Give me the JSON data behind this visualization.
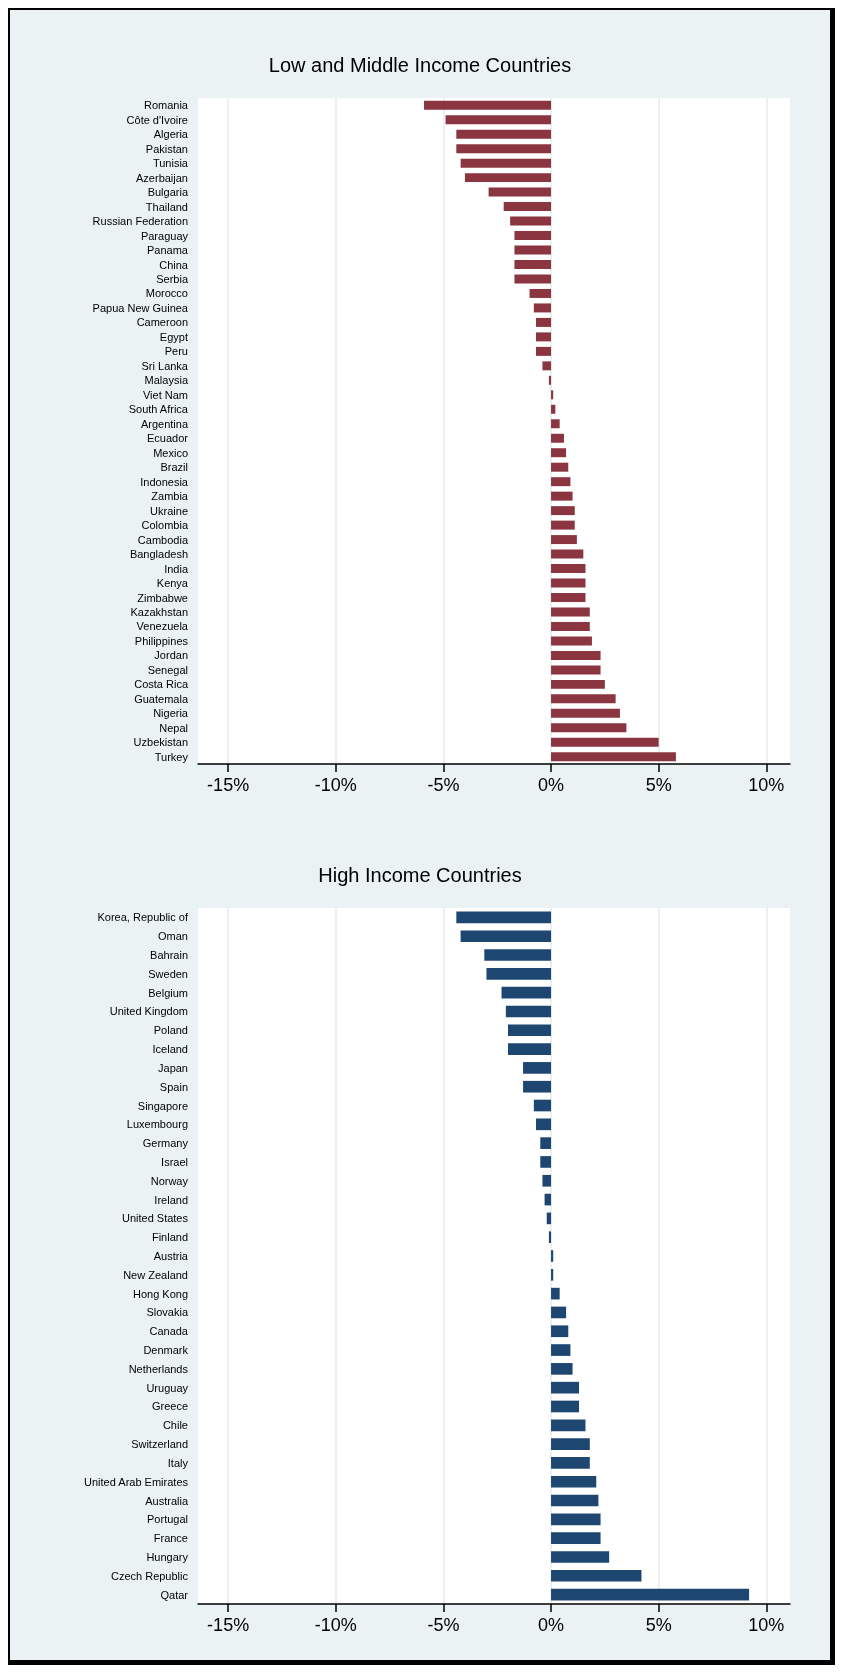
{
  "chart_data": [
    {
      "type": "bar",
      "orientation": "horizontal",
      "title": "Low and Middle Income Countries",
      "categories": [
        "Romania",
        "Côte d'Ivoire",
        "Algeria",
        "Pakistan",
        "Tunisia",
        "Azerbaijan",
        "Bulgaria",
        "Thailand",
        "Russian Federation",
        "Paraguay",
        "Panama",
        "China",
        "Serbia",
        "Morocco",
        "Papua New Guinea",
        "Cameroon",
        "Egypt",
        "Peru",
        "Sri Lanka",
        "Malaysia",
        "Viet Nam",
        "South Africa",
        "Argentina",
        "Ecuador",
        "Mexico",
        "Brazil",
        "Indonesia",
        "Zambia",
        "Ukraine",
        "Colombia",
        "Cambodia",
        "Bangladesh",
        "India",
        "Kenya",
        "Zimbabwe",
        "Kazakhstan",
        "Venezuela",
        "Philippines",
        "Jordan",
        "Senegal",
        "Costa Rica",
        "Guatemala",
        "Nigeria",
        "Nepal",
        "Uzbekistan",
        "Turkey"
      ],
      "values": [
        -5.9,
        -4.9,
        -4.4,
        -4.4,
        -4.2,
        -4.0,
        -2.9,
        -2.2,
        -1.9,
        -1.7,
        -1.7,
        -1.7,
        -1.7,
        -1.0,
        -0.8,
        -0.7,
        -0.7,
        -0.7,
        -0.4,
        -0.1,
        0.1,
        0.2,
        0.4,
        0.6,
        0.7,
        0.8,
        0.9,
        1.0,
        1.1,
        1.1,
        1.2,
        1.5,
        1.6,
        1.6,
        1.6,
        1.8,
        1.8,
        1.9,
        2.3,
        2.3,
        2.5,
        3.0,
        3.2,
        3.5,
        5.0,
        5.8
      ],
      "color": "#8b3540",
      "xlim": [
        -16.4,
        11.1
      ],
      "xticks": [
        {
          "value": -15,
          "label": "-15%"
        },
        {
          "value": -10,
          "label": "-10%"
        },
        {
          "value": -5,
          "label": "-5%"
        },
        {
          "value": 0,
          "label": "0%"
        },
        {
          "value": 5,
          "label": "5%"
        },
        {
          "value": 10,
          "label": "10%"
        }
      ],
      "grid": "x"
    },
    {
      "type": "bar",
      "orientation": "horizontal",
      "title": "High Income Countries",
      "categories": [
        "Korea, Republic of",
        "Oman",
        "Bahrain",
        "Sweden",
        "Belgium",
        "United Kingdom",
        "Poland",
        "Iceland",
        "Japan",
        "Spain",
        "Singapore",
        "Luxembourg",
        "Germany",
        "Israel",
        "Norway",
        "Ireland",
        "United States",
        "Finland",
        "Austria",
        "New Zealand",
        "Hong Kong",
        "Slovakia",
        "Canada",
        "Denmark",
        "Netherlands",
        "Uruguay",
        "Greece",
        "Chile",
        "Switzerland",
        "Italy",
        "United Arab Emirates",
        "Australia",
        "Portugal",
        "France",
        "Hungary",
        "Czech Republic",
        "Qatar"
      ],
      "values": [
        -4.4,
        -4.2,
        -3.1,
        -3.0,
        -2.3,
        -2.1,
        -2.0,
        -2.0,
        -1.3,
        -1.3,
        -0.8,
        -0.7,
        -0.5,
        -0.5,
        -0.4,
        -0.3,
        -0.2,
        -0.1,
        0.1,
        0.1,
        0.4,
        0.7,
        0.8,
        0.9,
        1.0,
        1.3,
        1.3,
        1.6,
        1.8,
        1.8,
        2.1,
        2.2,
        2.3,
        2.3,
        2.7,
        4.2,
        9.2
      ],
      "color": "#1d4670",
      "xlim": [
        -16.4,
        11.1
      ],
      "xticks": [
        {
          "value": -15,
          "label": "-15%"
        },
        {
          "value": -10,
          "label": "-10%"
        },
        {
          "value": -5,
          "label": "-5%"
        },
        {
          "value": 0,
          "label": "0%"
        },
        {
          "value": 5,
          "label": "5%"
        },
        {
          "value": 10,
          "label": "10%"
        }
      ],
      "grid": "x"
    }
  ]
}
